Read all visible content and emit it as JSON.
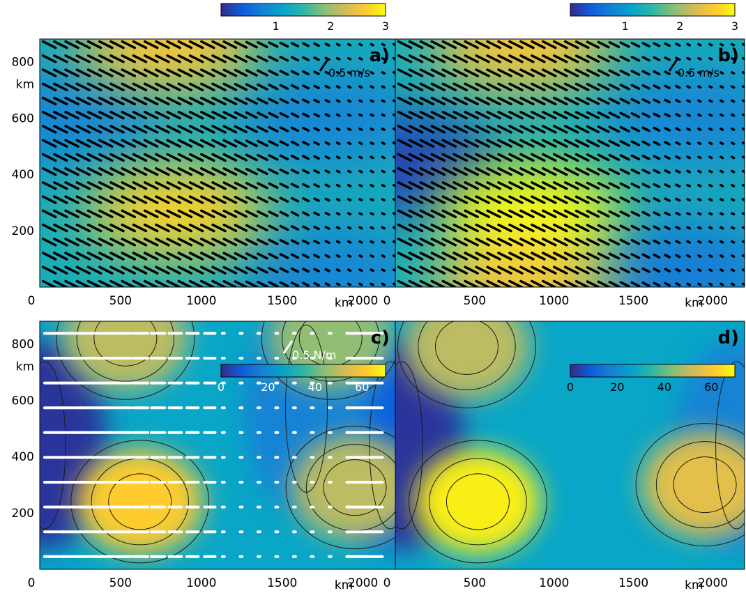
{
  "figure": {
    "axis_unit": "km",
    "panel_labels": [
      "a)",
      "b)",
      "c)",
      "d)"
    ],
    "colors": {
      "parula": [
        "#352a87",
        "#0f5cdd",
        "#1481d6",
        "#06a4ca",
        "#2eb7a4",
        "#87bf77",
        "#d1bb59",
        "#fec832",
        "#f9fb0e"
      ],
      "arrow_dark": "#000000",
      "arrow_light": "#ffffff",
      "contour_line": "#1a1a1a"
    }
  },
  "chart_data": [
    {
      "type": "heatmap",
      "panel": "a)",
      "xlim": [
        0,
        2200
      ],
      "ylim": [
        0,
        880
      ],
      "xticks": [
        "0",
        "500",
        "1000",
        "1500",
        "2000"
      ],
      "yticks": [
        "200",
        "400",
        "600",
        "800"
      ],
      "xunit": "km",
      "yunit": "km",
      "colorbar": {
        "range": [
          0,
          3
        ],
        "ticks": [
          "1",
          "2",
          "3"
        ],
        "location": "top-right outside"
      },
      "field_peaks": [
        {
          "x": 850,
          "y": 270,
          "value": 2.7
        },
        {
          "x": 800,
          "y": 860,
          "value": 2.6
        }
      ],
      "field_lows": [
        {
          "x": 150,
          "y": 600,
          "value": 0.8
        },
        {
          "x": 1800,
          "y": 600,
          "value": 0.8
        },
        {
          "x": 1800,
          "y": 50,
          "value": 0.8
        }
      ],
      "arrow_key": {
        "label": "0.5 m/s",
        "magnitude": 0.5
      },
      "arrow_color": "black",
      "arrow_field": "arrows pointing east-south-east, strongest in x 0–1100 km, rows repeat every 50 km"
    },
    {
      "type": "heatmap",
      "panel": "b)",
      "xlim": [
        0,
        2200
      ],
      "ylim": [
        0,
        880
      ],
      "xticks": [
        "0",
        "500",
        "1000",
        "1500",
        "2000"
      ],
      "xunit": "km",
      "colorbar": {
        "range": [
          0,
          3
        ],
        "ticks": [
          "1",
          "2",
          "3"
        ],
        "location": "top-right outside"
      },
      "field_peaks": [
        {
          "x": 850,
          "y": 270,
          "value": 3.0
        },
        {
          "x": 800,
          "y": 860,
          "value": 2.6
        },
        {
          "x": 800,
          "y": 10,
          "value": 2.5
        }
      ],
      "field_lows": [
        {
          "x": 20,
          "y": 440,
          "value": 0.2
        },
        {
          "x": 1900,
          "y": 600,
          "value": 0.8
        },
        {
          "x": 1800,
          "y": 60,
          "value": 0.7
        }
      ],
      "arrow_key": {
        "label": "0.5 m/s",
        "magnitude": 0.5
      },
      "arrow_color": "black"
    },
    {
      "type": "heatmap",
      "panel": "c)",
      "xlim": [
        0,
        2200
      ],
      "ylim": [
        0,
        880
      ],
      "xticks": [
        "0",
        "500",
        "1000",
        "1500",
        "2000"
      ],
      "yticks": [
        "200",
        "400",
        "600",
        "800"
      ],
      "xunit": "km",
      "yunit": "km",
      "colorbar": {
        "range": [
          0,
          70
        ],
        "ticks": [
          "0",
          "20",
          "40",
          "60"
        ],
        "location": "inside upper right"
      },
      "field_peaks": [
        {
          "x": 620,
          "y": 240,
          "value": 62
        },
        {
          "x": 1950,
          "y": 290,
          "value": 50
        },
        {
          "x": 530,
          "y": 820,
          "value": 50
        },
        {
          "x": 1800,
          "y": 820,
          "value": 45
        }
      ],
      "field_lows": [
        {
          "x": 30,
          "y": 440,
          "value": 2
        },
        {
          "x": 2170,
          "y": 440,
          "value": 10
        },
        {
          "x": 1650,
          "y": 570,
          "value": 18
        }
      ],
      "arrow_key": {
        "label": "0.5 N/m",
        "magnitude": 0.5
      },
      "arrow_color": "white",
      "arrow_field": "eastward in x 0–1100 km, weakening eastward, reversing to westward near x 2100 km"
    },
    {
      "type": "heatmap",
      "panel": "d)",
      "xlim": [
        0,
        2200
      ],
      "ylim": [
        0,
        880
      ],
      "xticks": [
        "0",
        "500",
        "1000",
        "1500",
        "2000"
      ],
      "xunit": "km",
      "colorbar": {
        "range": [
          0,
          70
        ],
        "ticks": [
          "0",
          "20",
          "40",
          "60"
        ],
        "location": "inside upper right"
      },
      "field_peaks": [
        {
          "x": 520,
          "y": 240,
          "value": 68
        },
        {
          "x": 1950,
          "y": 300,
          "value": 56
        },
        {
          "x": 450,
          "y": 790,
          "value": 50
        }
      ],
      "field_lows": [
        {
          "x": 40,
          "y": 440,
          "value": 2
        },
        {
          "x": 2150,
          "y": 440,
          "value": 18
        }
      ],
      "arrow_key": null
    }
  ]
}
